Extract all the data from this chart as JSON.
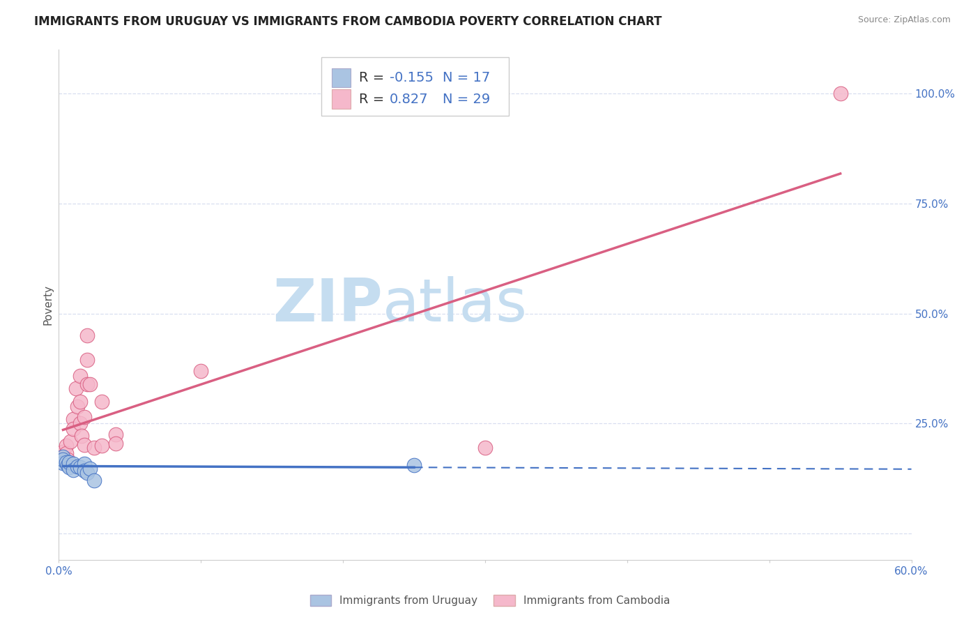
{
  "title": "IMMIGRANTS FROM URUGUAY VS IMMIGRANTS FROM CAMBODIA POVERTY CORRELATION CHART",
  "source": "Source: ZipAtlas.com",
  "ylabel": "Poverty",
  "xlim": [
    0.0,
    0.6
  ],
  "ylim": [
    -0.06,
    1.1
  ],
  "yticks": [
    0.0,
    0.25,
    0.5,
    0.75,
    1.0
  ],
  "ytick_labels": [
    "",
    "25.0%",
    "50.0%",
    "75.0%",
    "100.0%"
  ],
  "xticks": [
    0.0,
    0.1,
    0.2,
    0.3,
    0.4,
    0.5,
    0.6
  ],
  "xtick_labels": [
    "0.0%",
    "",
    "",
    "",
    "",
    "",
    "60.0%"
  ],
  "uruguay_R": -0.155,
  "uruguay_N": 17,
  "cambodia_R": 0.827,
  "cambodia_N": 29,
  "uruguay_color": "#aac4e2",
  "cambodia_color": "#f5b8cb",
  "trend_uruguay_color": "#4472c4",
  "trend_cambodia_color": "#d95f82",
  "watermark_zip_color": "#c5ddf0",
  "watermark_atlas_color": "#c5ddf0",
  "background_color": "#ffffff",
  "grid_color": "#d8dff0",
  "title_color": "#222222",
  "axis_label_color": "#4472c4",
  "legend_text_color": "#4472c4",
  "legend_r_color": "#333333",
  "uruguay_scatter": [
    [
      0.003,
      0.175
    ],
    [
      0.003,
      0.16
    ],
    [
      0.003,
      0.168
    ],
    [
      0.005,
      0.162
    ],
    [
      0.006,
      0.155
    ],
    [
      0.007,
      0.15
    ],
    [
      0.007,
      0.162
    ],
    [
      0.01,
      0.158
    ],
    [
      0.01,
      0.145
    ],
    [
      0.013,
      0.152
    ],
    [
      0.015,
      0.15
    ],
    [
      0.018,
      0.158
    ],
    [
      0.018,
      0.142
    ],
    [
      0.02,
      0.138
    ],
    [
      0.022,
      0.148
    ],
    [
      0.025,
      0.12
    ],
    [
      0.25,
      0.155
    ]
  ],
  "cambodia_scatter": [
    [
      0.003,
      0.185
    ],
    [
      0.003,
      0.175
    ],
    [
      0.005,
      0.2
    ],
    [
      0.005,
      0.182
    ],
    [
      0.006,
      0.168
    ],
    [
      0.007,
      0.155
    ],
    [
      0.008,
      0.21
    ],
    [
      0.01,
      0.26
    ],
    [
      0.01,
      0.238
    ],
    [
      0.012,
      0.33
    ],
    [
      0.013,
      0.288
    ],
    [
      0.015,
      0.358
    ],
    [
      0.015,
      0.3
    ],
    [
      0.015,
      0.25
    ],
    [
      0.016,
      0.222
    ],
    [
      0.018,
      0.265
    ],
    [
      0.018,
      0.202
    ],
    [
      0.02,
      0.45
    ],
    [
      0.02,
      0.395
    ],
    [
      0.02,
      0.34
    ],
    [
      0.022,
      0.34
    ],
    [
      0.025,
      0.195
    ],
    [
      0.03,
      0.3
    ],
    [
      0.03,
      0.2
    ],
    [
      0.04,
      0.225
    ],
    [
      0.04,
      0.205
    ],
    [
      0.1,
      0.37
    ],
    [
      0.3,
      0.195
    ],
    [
      0.55,
      1.0
    ]
  ],
  "title_fontsize": 12,
  "axis_fontsize": 11,
  "legend_fontsize": 14,
  "scatter_size": 220
}
